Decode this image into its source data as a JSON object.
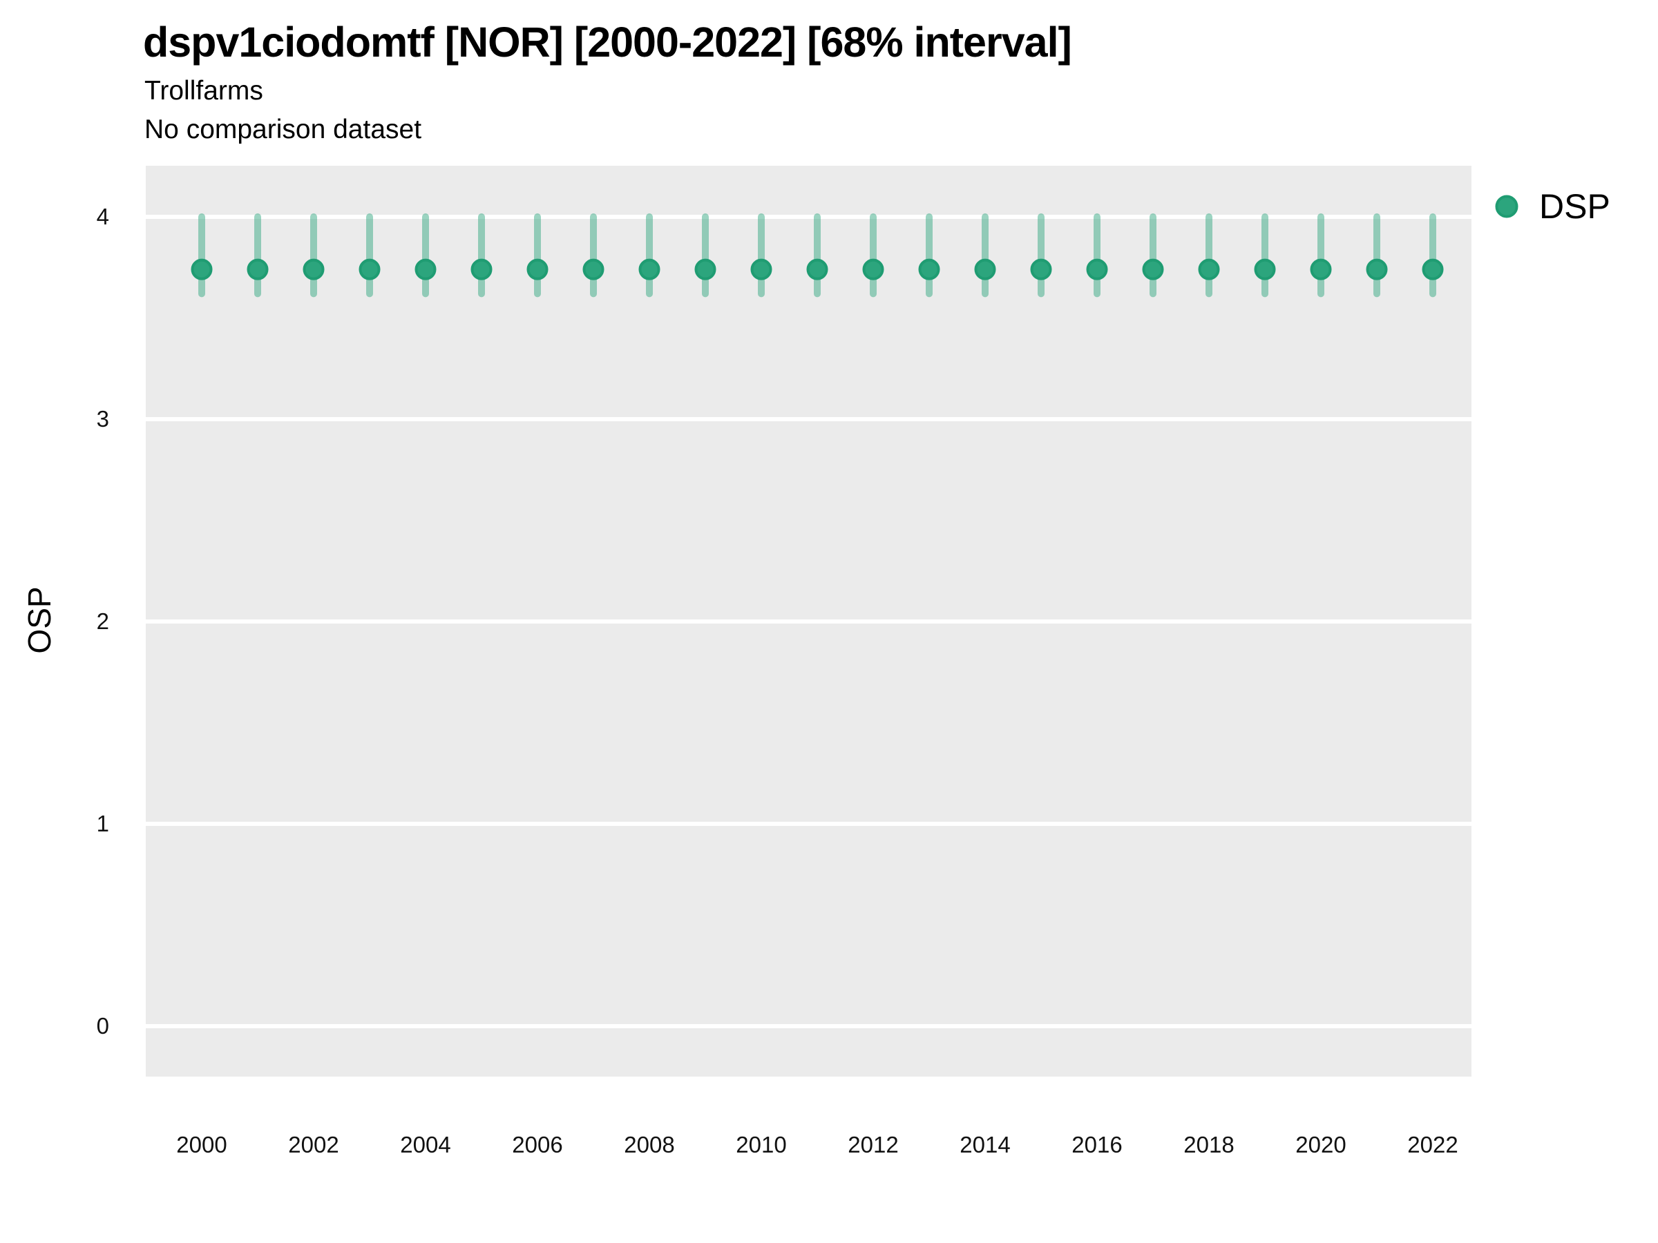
{
  "header": {
    "title": "dspv1ciodomtf [NOR] [2000-2022] [68% interval]",
    "subtitle": "Trollfarms",
    "comparison_note": "No comparison dataset"
  },
  "chart_data": {
    "type": "scatter",
    "title": "dspv1ciodomtf [NOR] [2000-2022] [68% interval]",
    "subtitle": "Trollfarms",
    "comparison_note": "No comparison dataset",
    "xlabel": "",
    "ylabel": "OSP",
    "interval_level": "68%",
    "x": [
      2000,
      2001,
      2002,
      2003,
      2004,
      2005,
      2006,
      2007,
      2008,
      2009,
      2010,
      2011,
      2012,
      2013,
      2014,
      2015,
      2016,
      2017,
      2018,
      2019,
      2020,
      2021,
      2022
    ],
    "series": [
      {
        "name": "DSP",
        "values": [
          3.74,
          3.74,
          3.74,
          3.74,
          3.74,
          3.74,
          3.74,
          3.74,
          3.74,
          3.74,
          3.74,
          3.74,
          3.74,
          3.74,
          3.74,
          3.74,
          3.74,
          3.74,
          3.74,
          3.74,
          3.74,
          3.74,
          3.74
        ],
        "interval_low": [
          3.62,
          3.62,
          3.62,
          3.62,
          3.62,
          3.62,
          3.62,
          3.62,
          3.62,
          3.62,
          3.62,
          3.62,
          3.62,
          3.62,
          3.62,
          3.62,
          3.62,
          3.62,
          3.62,
          3.62,
          3.62,
          3.62,
          3.62
        ],
        "interval_high": [
          4.0,
          4.0,
          4.0,
          4.0,
          4.0,
          4.0,
          4.0,
          4.0,
          4.0,
          4.0,
          4.0,
          4.0,
          4.0,
          4.0,
          4.0,
          4.0,
          4.0,
          4.0,
          4.0,
          4.0,
          4.0,
          4.0,
          4.0
        ]
      }
    ],
    "xticks": [
      2000,
      2002,
      2004,
      2006,
      2008,
      2010,
      2012,
      2014,
      2016,
      2018,
      2020,
      2022
    ],
    "yticks": [
      0,
      1,
      2,
      3,
      4
    ],
    "xlim": [
      1999,
      2023
    ],
    "ylim": [
      -0.25,
      4.25
    ],
    "grid": "horizontal-major-only",
    "legend": {
      "position": "right-top",
      "entries": [
        {
          "label": "DSP",
          "marker": "circle"
        }
      ]
    }
  },
  "style": {
    "panel_bg": "#ebebeb",
    "grid_color": "#ffffff",
    "point_fill": "#2ca57d",
    "point_stroke": "#1f9c72",
    "interval_color": "rgba(45,165,125,0.48)",
    "tick_label_color": "#111111",
    "text_color": "#000000"
  }
}
